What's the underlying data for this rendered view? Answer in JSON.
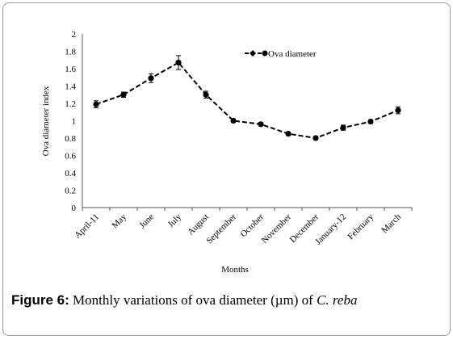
{
  "chart_data": {
    "type": "line",
    "title": "",
    "xlabel": "Months",
    "ylabel": "Ova diameter  index",
    "ylim": [
      0,
      2
    ],
    "yticks": [
      "0",
      "0.2",
      "0.4",
      "0.6",
      "0.8",
      "1",
      "1.2",
      "1.4",
      "1.6",
      "1.8",
      "2"
    ],
    "categories": [
      "April-11",
      "May",
      "June",
      "July",
      "August",
      "September",
      "October",
      "November",
      "December",
      "January-12",
      "February",
      "March"
    ],
    "series": [
      {
        "name": "Ova diameter",
        "values": [
          1.19,
          1.3,
          1.49,
          1.67,
          1.3,
          1.0,
          0.96,
          0.85,
          0.8,
          0.92,
          0.99,
          1.12
        ],
        "errors": [
          0.04,
          0.03,
          0.05,
          0.08,
          0.04,
          0.02,
          0.02,
          0.02,
          0.02,
          0.03,
          0.02,
          0.04
        ],
        "color": "#000000",
        "style": "dashed",
        "marker": "filled-circle"
      }
    ],
    "legend_position": "top-right",
    "grid": false
  },
  "caption": {
    "label": "Figure 6:",
    "text": " Monthly variations of ova diameter (µm) of ",
    "species": "C. reba"
  }
}
